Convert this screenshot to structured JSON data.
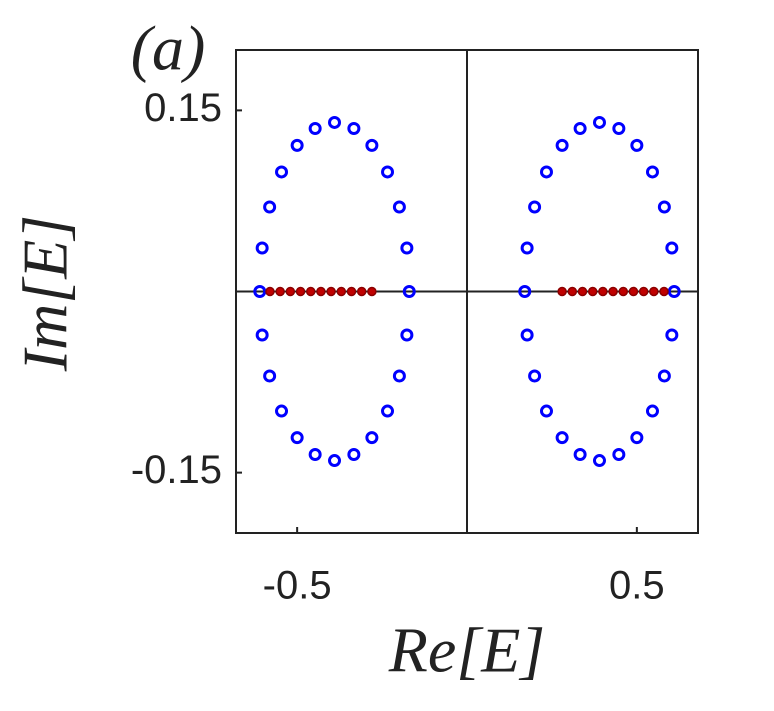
{
  "chart_data": {
    "type": "scatter",
    "annotation": "(a)",
    "xlabel": "Re[E]",
    "ylabel": "Im[E]",
    "xlim": [
      -0.68,
      0.68
    ],
    "ylim": [
      -0.2,
      0.2
    ],
    "xticks": [
      -0.5,
      0.5
    ],
    "yticks": [
      -0.15,
      0.15
    ],
    "series": [
      {
        "color": "#0000ff",
        "x": [
          -0.17,
          -0.177,
          -0.199,
          -0.234,
          -0.28,
          -0.333,
          -0.39,
          -0.447,
          -0.5,
          -0.546,
          -0.581,
          -0.603,
          -0.61,
          -0.603,
          -0.581,
          -0.546,
          -0.5,
          -0.447,
          -0.39,
          -0.333,
          -0.28,
          -0.234,
          -0.199,
          -0.177,
          0.17,
          0.177,
          0.199,
          0.234,
          0.28,
          0.333,
          0.39,
          0.447,
          0.5,
          0.546,
          0.581,
          0.603,
          0.61,
          0.603,
          0.581,
          0.546,
          0.5,
          0.447,
          0.39,
          0.333,
          0.28,
          0.234,
          0.199,
          0.177
        ],
        "y": [
          0,
          0.036,
          0.07,
          0.099,
          0.121,
          0.135,
          0.14,
          0.135,
          0.121,
          0.099,
          0.07,
          0.036,
          0,
          -0.036,
          -0.07,
          -0.099,
          -0.121,
          -0.135,
          -0.14,
          -0.135,
          -0.121,
          -0.099,
          -0.07,
          -0.036,
          0,
          0.036,
          0.07,
          0.099,
          0.121,
          0.135,
          0.14,
          0.135,
          0.121,
          0.099,
          0.07,
          0.036,
          0,
          -0.036,
          -0.07,
          -0.099,
          -0.121,
          -0.135,
          -0.14,
          -0.135,
          -0.121,
          -0.099,
          -0.07,
          -0.036
        ]
      },
      {
        "color": "#c00000",
        "x": [
          -0.58,
          -0.55,
          -0.52,
          -0.49,
          -0.46,
          -0.43,
          -0.4,
          -0.37,
          -0.34,
          -0.31,
          -0.28,
          0.28,
          0.31,
          0.34,
          0.37,
          0.4,
          0.43,
          0.46,
          0.49,
          0.52,
          0.55,
          0.58
        ],
        "y": [
          0,
          0,
          0,
          0,
          0,
          0,
          0,
          0,
          0,
          0,
          0,
          0,
          0,
          0,
          0,
          0,
          0,
          0,
          0,
          0,
          0,
          0
        ]
      }
    ]
  }
}
